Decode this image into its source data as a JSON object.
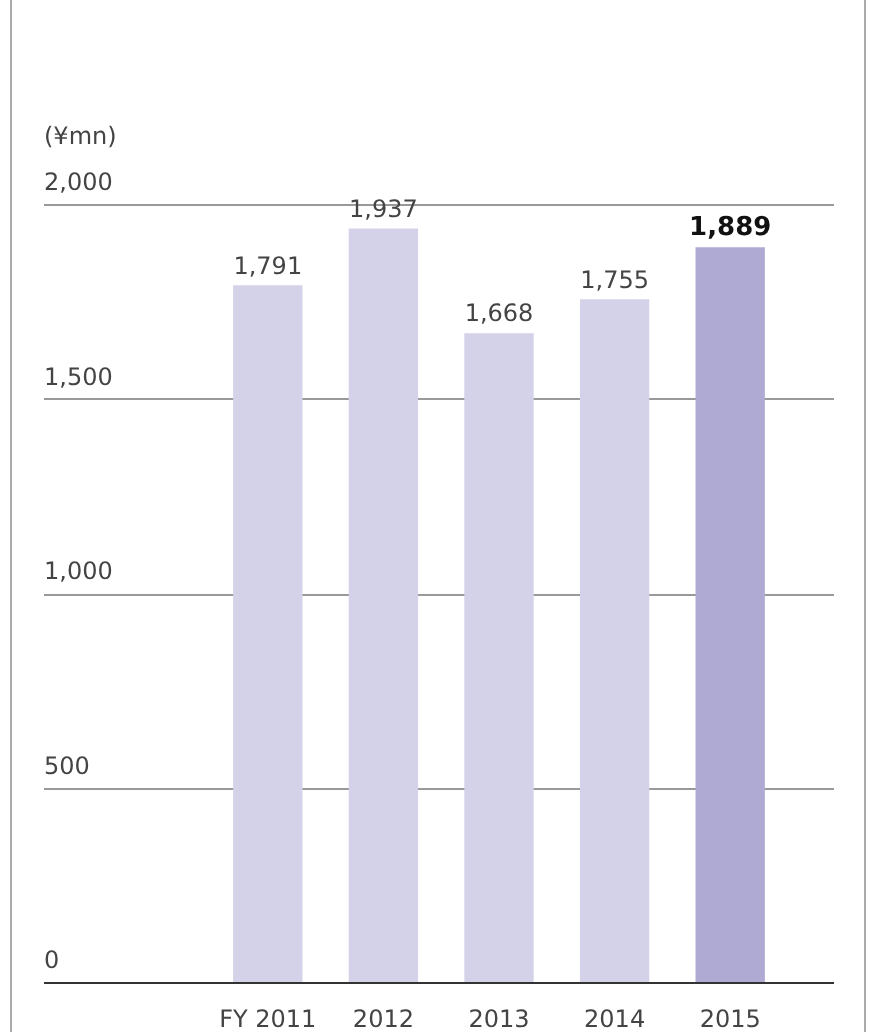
{
  "chart_data": {
    "type": "bar",
    "ylabel": "(¥mn)",
    "categories": [
      "FY 2011",
      "2012",
      "2013",
      "2014",
      "2015"
    ],
    "values": [
      1791,
      1937,
      1668,
      1755,
      1889
    ],
    "value_labels": [
      "1,791",
      "1,937",
      "1,668",
      "1,755",
      "1,889"
    ],
    "colors": [
      "#d3d2e8",
      "#d3d2e8",
      "#d3d2e8",
      "#d3d2e8",
      "#afaad3"
    ],
    "ylim": [
      0,
      2000
    ],
    "yticks": [
      0,
      {
        "value": 500,
        "label": "500"
      },
      {
        "value": 1000,
        "label": "1,000"
      },
      {
        "value": 1500,
        "label": "1,500"
      },
      {
        "value": 2000,
        "label": "2,000"
      }
    ],
    "grid": "y"
  }
}
